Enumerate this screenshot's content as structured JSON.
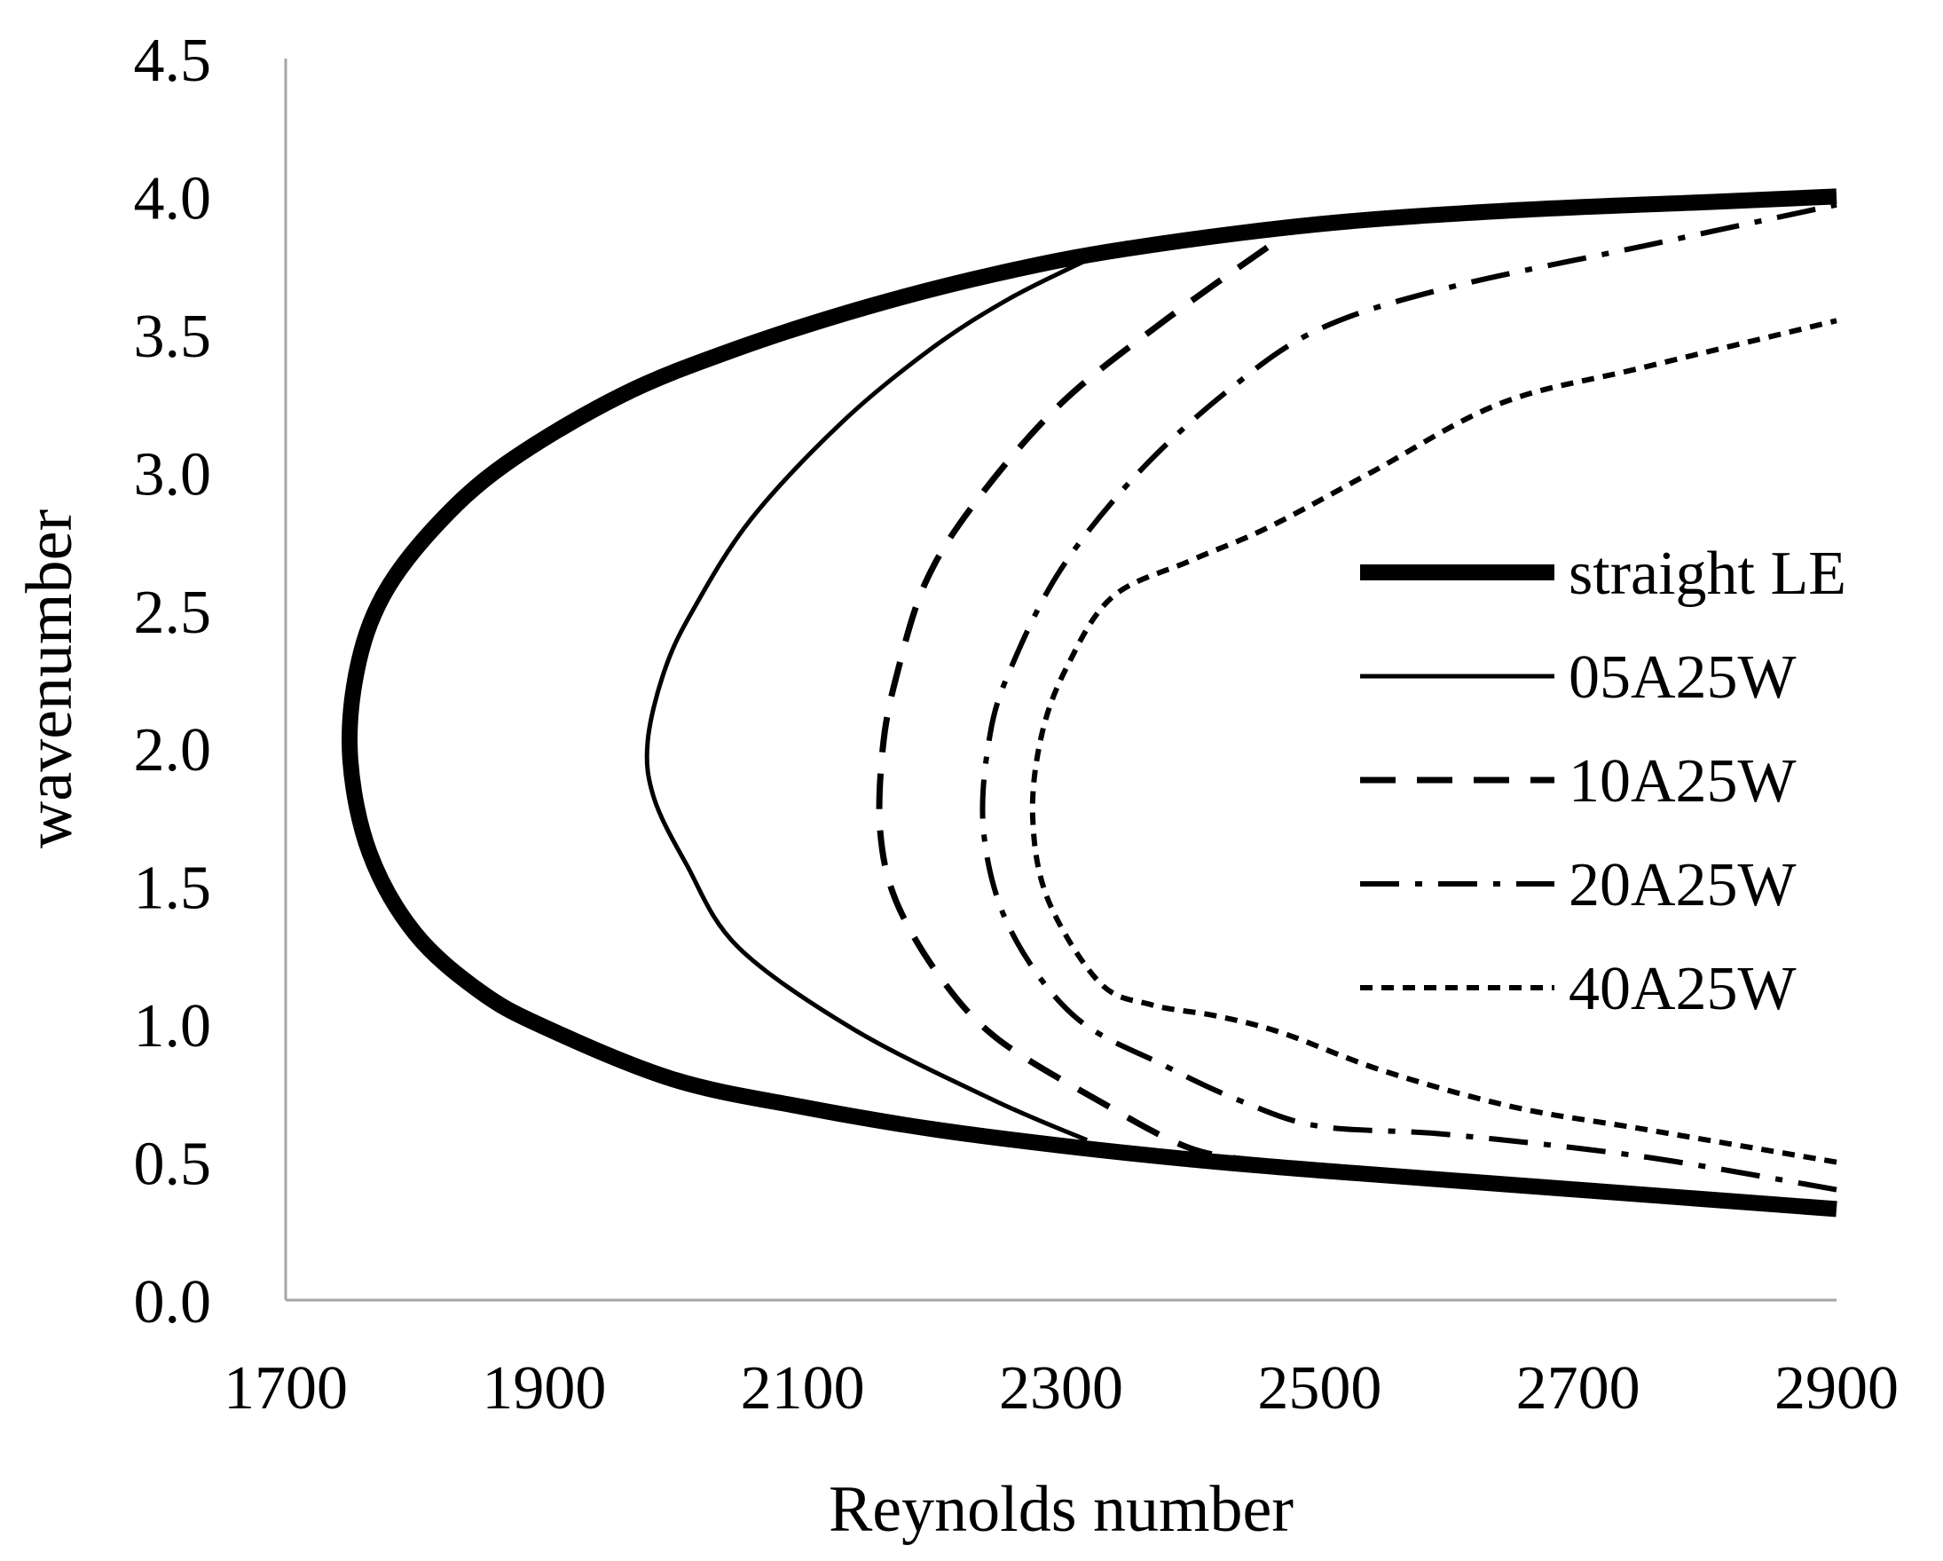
{
  "chart_data": {
    "type": "line",
    "title": "",
    "xlabel": "Reynolds number",
    "ylabel": "wavenumber",
    "xlim": [
      1700,
      2900
    ],
    "ylim": [
      0.0,
      4.5
    ],
    "xticks": [
      "1700",
      "1900",
      "2100",
      "2300",
      "2500",
      "2700",
      "2900"
    ],
    "yticks": [
      "0.0",
      "0.5",
      "1.0",
      "1.5",
      "2.0",
      "2.5",
      "3.0",
      "3.5",
      "4.0",
      "4.5"
    ],
    "grid": false,
    "legend_position": "right",
    "series": [
      {
        "name": "straight LE",
        "style": "solid-thick",
        "color": "#000000",
        "x": [
          2900,
          2700,
          2500,
          2400,
          2300,
          2200,
          2100,
          2000,
          1900,
          1850,
          1800,
          1765,
          1750,
          1755,
          1775,
          1815,
          1870,
          1960,
          2050,
          2150,
          2250,
          2350,
          2500,
          2650,
          2800,
          2900
        ],
        "y": [
          0.33,
          0.4,
          0.47,
          0.51,
          0.56,
          0.62,
          0.7,
          0.8,
          0.99,
          1.12,
          1.33,
          1.62,
          1.96,
          2.28,
          2.55,
          2.8,
          3.03,
          3.28,
          3.45,
          3.6,
          3.72,
          3.81,
          3.9,
          3.95,
          3.98,
          4.0
        ]
      },
      {
        "name": "05A25W",
        "style": "solid-thin",
        "color": "#000000",
        "x": [
          2320,
          2250,
          2140,
          2050,
          2010,
          1985,
          1980,
          1993,
          2015,
          2060,
          2130,
          2200,
          2260,
          2320
        ],
        "y": [
          0.58,
          0.72,
          0.98,
          1.28,
          1.58,
          1.82,
          2.02,
          2.28,
          2.5,
          2.83,
          3.18,
          3.45,
          3.63,
          3.77
        ]
      },
      {
        "name": "10A25W",
        "style": "dash",
        "color": "#000000",
        "x": [
          2460,
          2400,
          2330,
          2250,
          2205,
          2172,
          2160,
          2162,
          2172,
          2195,
          2235,
          2300,
          2380,
          2470
        ],
        "y": [
          0.5,
          0.55,
          0.72,
          0.95,
          1.18,
          1.45,
          1.7,
          2.0,
          2.25,
          2.6,
          2.9,
          3.25,
          3.55,
          3.85
        ]
      },
      {
        "name": "20A25W",
        "style": "dashdot",
        "color": "#000000",
        "x": [
          2900,
          2750,
          2600,
          2500,
          2440,
          2380,
          2310,
          2260,
          2240,
          2245,
          2262,
          2300,
          2360,
          2430,
          2500,
          2600,
          2750,
          2900
        ],
        "y": [
          0.4,
          0.52,
          0.6,
          0.63,
          0.72,
          0.85,
          1.03,
          1.35,
          1.7,
          2.05,
          2.3,
          2.65,
          3.0,
          3.3,
          3.52,
          3.67,
          3.82,
          3.97
        ]
      },
      {
        "name": "40A25W",
        "style": "dot",
        "color": "#000000",
        "x": [
          2900,
          2750,
          2650,
          2550,
          2470,
          2420,
          2370,
          2330,
          2290,
          2278,
          2285,
          2305,
          2340,
          2400,
          2460,
          2540,
          2640,
          2750,
          2900
        ],
        "y": [
          0.5,
          0.62,
          0.7,
          0.83,
          0.97,
          1.03,
          1.07,
          1.15,
          1.45,
          1.75,
          2.05,
          2.3,
          2.55,
          2.68,
          2.8,
          3.0,
          3.25,
          3.38,
          3.55
        ]
      }
    ]
  }
}
